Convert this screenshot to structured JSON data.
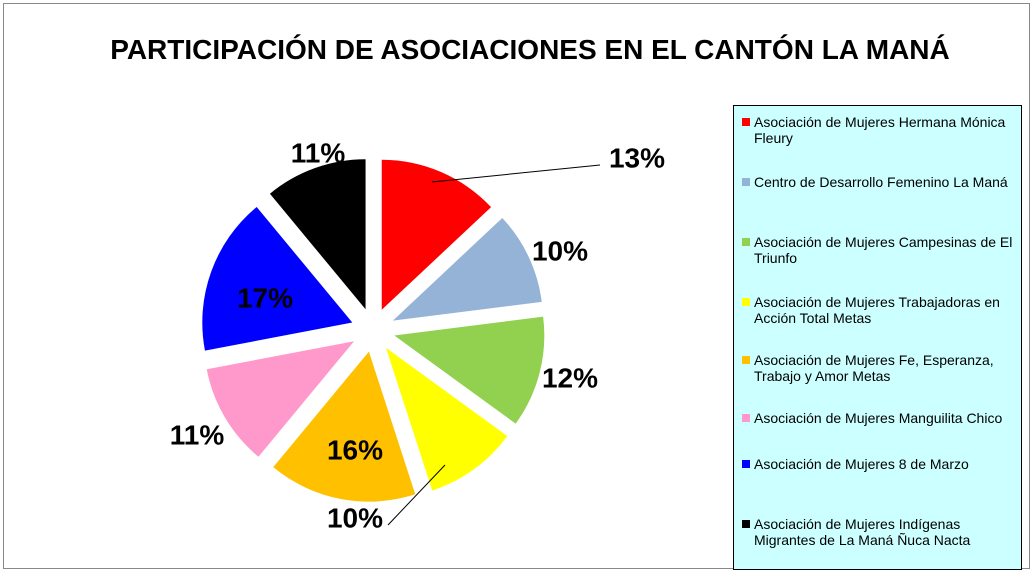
{
  "chart_data": {
    "type": "pie",
    "title": "PARTICIPACIÓN DE ASOCIACIONES EN EL CANTÓN LA MANÁ",
    "categories": [
      "Asociación de Mujeres Hermana Mónica Fleury",
      "Centro de Desarrollo Femenino La Maná",
      "Asociación de Mujeres Campesinas de El Triunfo",
      "Asociación de Mujeres Trabajadoras en Acción Total Metas",
      "Asociación de Mujeres Fe, Esperanza, Trabajo y Amor Metas",
      "Asociación de Mujeres Manguilita Chico",
      "Asociación de Mujeres 8 de Marzo",
      "Asociación de Mujeres Indígenas Migrantes de La Maná Ñuca Nacta"
    ],
    "values": [
      13,
      10,
      12,
      10,
      16,
      11,
      17,
      11
    ],
    "value_labels": [
      "13%",
      "10%",
      "12%",
      "10%",
      "16%",
      "11%",
      "17%",
      "11%"
    ],
    "colors": [
      "#ff0000",
      "#95b3d7",
      "#92d050",
      "#ffff00",
      "#ffc000",
      "#ff99cc",
      "#0000ff",
      "#000000"
    ],
    "legend": "right"
  }
}
